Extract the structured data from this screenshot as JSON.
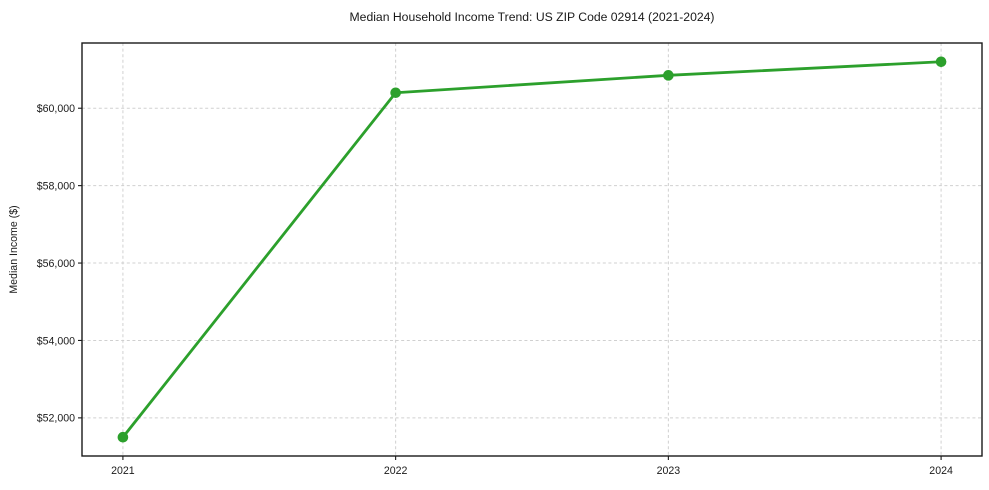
{
  "chart_data": {
    "type": "line",
    "title": "Median Household Income Trend: US ZIP Code 02914 (2021-2024)",
    "xlabel": "",
    "ylabel": "Median Income ($)",
    "categories": [
      "2021",
      "2022",
      "2023",
      "2024"
    ],
    "x": [
      0,
      1,
      2,
      3
    ],
    "values": [
      51500,
      60400,
      60850,
      61200
    ],
    "xlim": [
      -0.15,
      3.15
    ],
    "ylim": [
      51015,
      61685
    ],
    "yticks": [
      52000,
      54000,
      56000,
      58000,
      60000
    ],
    "ytick_labels": [
      "$52,000",
      "$54,000",
      "$56,000",
      "$58,000",
      "$60,000"
    ],
    "xtick_labels": [
      "2021",
      "2022",
      "2023",
      "2024"
    ],
    "grid": true,
    "grid_style": "dashed",
    "legend": "none",
    "marker": "circle",
    "colors": {
      "line": "#2ca02c",
      "marker": "#2ca02c",
      "grid": "#d0d0d0",
      "spine": "#1a1a1a",
      "text": "#1a1a1a",
      "background": "#ffffff"
    }
  }
}
